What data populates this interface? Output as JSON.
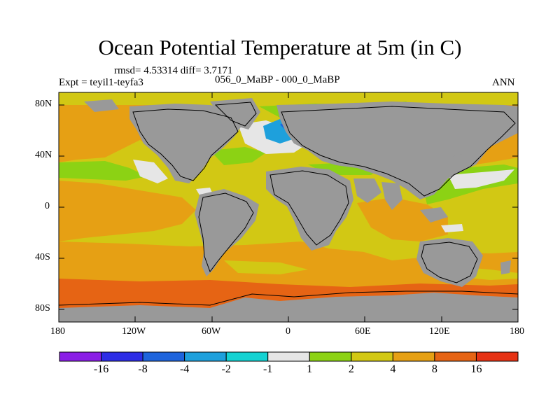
{
  "title": "Ocean Potential Temperature at 5m (in C)",
  "stats": "rmsd= 4.53314 diff= 3.7171",
  "experiment": "Expt = teyil1-teyfa3",
  "period": "056_0_MaBP - 000_0_MaBP",
  "season": "ANN",
  "lat_labels": [
    "80N",
    "40N",
    "0",
    "40S",
    "80S"
  ],
  "lon_labels": [
    "180",
    "120W",
    "60W",
    "0",
    "60E",
    "120E",
    "180"
  ],
  "colorbar": {
    "labels": [
      "-16",
      "-8",
      "-4",
      "-2",
      "-1",
      "1",
      "2",
      "4",
      "8",
      "16"
    ],
    "colors": [
      "#8a1ee6",
      "#2d2de6",
      "#1e64dc",
      "#1ea0dc",
      "#14d2d2",
      "#e6e6e6",
      "#8cd214",
      "#d2c814",
      "#e6a014",
      "#e66414",
      "#e63214"
    ]
  },
  "colors": {
    "land": "#999999",
    "warm_orange": "#e6a014",
    "yellow": "#d2c814",
    "dark_orange": "#e66414",
    "green": "#8cd214",
    "white": "#e6e6e6",
    "cyan": "#14d2d2",
    "light_blue": "#1ea0dc",
    "blue": "#1e64dc"
  }
}
